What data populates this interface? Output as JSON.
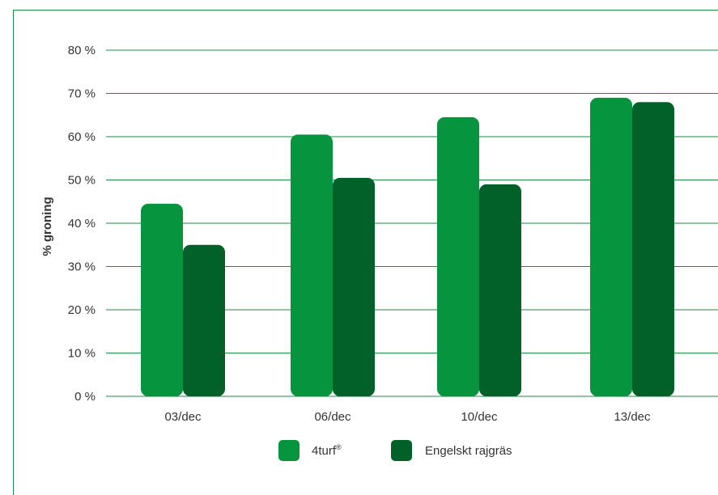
{
  "chart_data": {
    "type": "bar",
    "title": "",
    "xlabel": "",
    "ylabel": "% groning",
    "categories": [
      "03/dec",
      "06/dec",
      "10/dec",
      "13/dec"
    ],
    "series": [
      {
        "name": "4turf",
        "name_suffix": "®",
        "color": "#07943f",
        "values": [
          44.5,
          60.5,
          64.5,
          69
        ]
      },
      {
        "name": "Engelskt rajgräs",
        "color": "#026128",
        "values": [
          35,
          50.5,
          49,
          68
        ]
      }
    ],
    "ylim": [
      0,
      80
    ],
    "yticks": [
      0,
      10,
      20,
      30,
      40,
      50,
      60,
      70,
      80
    ],
    "ytick_labels": [
      "0 %",
      "10 %",
      "20 %",
      "30 %",
      "40 %",
      "50 %",
      "60 %",
      "70 %",
      "80 %"
    ],
    "grid": true,
    "grid_color": "#1f8a45",
    "legend_position": "bottom-center"
  }
}
